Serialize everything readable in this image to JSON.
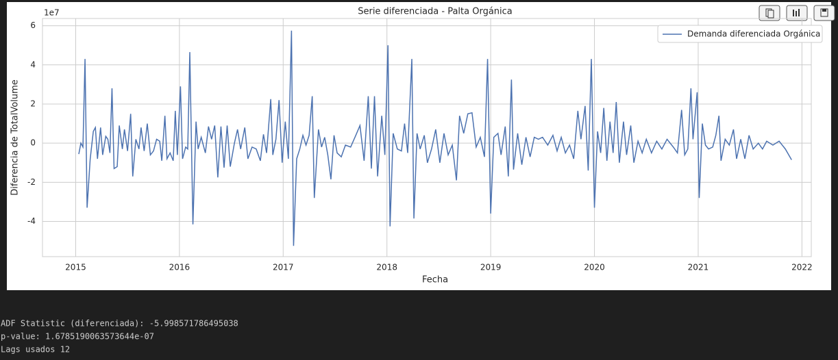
{
  "chart_data": {
    "type": "line",
    "title": "Serie diferenciada - Palta Orgánica",
    "x_label": "Fecha",
    "y_label": "Diferencia de TotalVolume",
    "y_offset_label": "1e7",
    "xlim": [
      2014.68,
      2022.09
    ],
    "xticks": [
      2015,
      2016,
      2017,
      2018,
      2019,
      2020,
      2021,
      2022
    ],
    "ylim": [
      -5.8,
      6.37
    ],
    "yticks": [
      -4,
      -2,
      0,
      2,
      4,
      6
    ],
    "grid": true,
    "legend": "upper right",
    "x": [
      2015.03,
      2015.05,
      2015.07,
      2015.09,
      2015.11,
      2015.14,
      2015.17,
      2015.19,
      2015.21,
      2015.24,
      2015.26,
      2015.29,
      2015.31,
      2015.33,
      2015.35,
      2015.37,
      2015.4,
      2015.42,
      2015.45,
      2015.47,
      2015.5,
      2015.53,
      2015.55,
      2015.58,
      2015.61,
      2015.63,
      2015.66,
      2015.69,
      2015.72,
      2015.75,
      2015.78,
      2015.81,
      2015.83,
      2015.86,
      2015.88,
      2015.91,
      2015.94,
      2015.96,
      2015.98,
      2016.01,
      2016.03,
      2016.06,
      2016.08,
      2016.1,
      2016.13,
      2016.16,
      2016.18,
      2016.21,
      2016.25,
      2016.28,
      2016.31,
      2016.34,
      2016.37,
      2016.4,
      2016.43,
      2016.46,
      2016.49,
      2016.53,
      2016.56,
      2016.59,
      2016.63,
      2016.66,
      2016.7,
      2016.74,
      2016.78,
      2016.81,
      2016.84,
      2016.88,
      2016.9,
      2016.93,
      2016.96,
      2016.99,
      2017.02,
      2017.05,
      2017.08,
      2017.1,
      2017.13,
      2017.16,
      2017.19,
      2017.22,
      2017.25,
      2017.28,
      2017.3,
      2017.34,
      2017.37,
      2017.4,
      2017.43,
      2017.46,
      2017.49,
      2017.52,
      2017.56,
      2017.6,
      2017.65,
      2017.7,
      2017.74,
      2017.78,
      2017.82,
      2017.85,
      2017.88,
      2017.91,
      2017.95,
      2017.98,
      2018.01,
      2018.03,
      2018.06,
      2018.1,
      2018.14,
      2018.17,
      2018.2,
      2018.24,
      2018.26,
      2018.29,
      2018.32,
      2018.36,
      2018.39,
      2018.43,
      2018.47,
      2018.51,
      2018.55,
      2018.59,
      2018.63,
      2018.67,
      2018.7,
      2018.74,
      2018.78,
      2018.82,
      2018.86,
      2018.9,
      2018.94,
      2018.97,
      2019.0,
      2019.03,
      2019.07,
      2019.1,
      2019.14,
      2019.17,
      2019.2,
      2019.22,
      2019.26,
      2019.3,
      2019.34,
      2019.38,
      2019.42,
      2019.46,
      2019.5,
      2019.55,
      2019.6,
      2019.64,
      2019.68,
      2019.72,
      2019.76,
      2019.8,
      2019.84,
      2019.87,
      2019.91,
      2019.94,
      2019.97,
      2020.0,
      2020.03,
      2020.06,
      2020.09,
      2020.12,
      2020.15,
      2020.18,
      2020.21,
      2020.24,
      2020.28,
      2020.31,
      2020.35,
      2020.38,
      2020.42,
      2020.46,
      2020.5,
      2020.55,
      2020.6,
      2020.65,
      2020.7,
      2020.76,
      2020.8,
      2020.84,
      2020.87,
      2020.9,
      2020.93,
      2020.95,
      2020.99,
      2021.01,
      2021.04,
      2021.07,
      2021.1,
      2021.14,
      2021.17,
      2021.2,
      2021.22,
      2021.26,
      2021.3,
      2021.34,
      2021.37,
      2021.41,
      2021.45,
      2021.49,
      2021.53,
      2021.58,
      2021.62,
      2021.66,
      2021.72,
      2021.78,
      2021.84,
      2021.9
    ],
    "series": [
      {
        "name": "Demanda diferenciada Orgánica",
        "color": "#4c72b0",
        "values": [
          -0.56,
          0.0,
          -0.2,
          4.3,
          -3.3,
          -0.8,
          0.6,
          0.8,
          -0.8,
          0.8,
          -0.6,
          0.35,
          0.2,
          -0.5,
          2.8,
          -1.3,
          -1.2,
          0.9,
          -0.3,
          0.7,
          -0.4,
          1.5,
          -1.7,
          0.2,
          -0.3,
          0.8,
          -0.4,
          1.0,
          -0.6,
          -0.4,
          0.2,
          0.1,
          -0.9,
          1.4,
          -0.8,
          -0.5,
          -0.9,
          1.65,
          -0.6,
          2.9,
          -0.8,
          -0.2,
          -0.3,
          4.65,
          -4.15,
          1.1,
          -0.3,
          0.3,
          -0.5,
          0.85,
          0.2,
          0.9,
          -1.75,
          0.85,
          -1.25,
          0.9,
          -1.2,
          0.0,
          0.7,
          -0.3,
          0.8,
          -0.8,
          -0.2,
          -0.3,
          -0.9,
          0.45,
          -0.5,
          2.25,
          -0.6,
          0.2,
          2.2,
          -1.0,
          1.1,
          -0.8,
          5.75,
          -5.25,
          -0.8,
          -0.3,
          0.4,
          -0.1,
          0.4,
          2.4,
          -2.8,
          0.7,
          -0.2,
          0.3,
          -0.6,
          -1.85,
          0.4,
          -0.5,
          -0.7,
          -0.1,
          -0.2,
          0.4,
          0.9,
          -0.9,
          2.4,
          -1.3,
          2.4,
          -1.7,
          1.4,
          -0.6,
          5.0,
          -4.25,
          0.5,
          -0.3,
          -0.4,
          1.0,
          -0.5,
          4.3,
          -3.85,
          0.5,
          -0.3,
          0.4,
          -1.0,
          -0.3,
          0.7,
          -1.0,
          0.5,
          -0.6,
          -0.1,
          -1.9,
          1.4,
          0.5,
          1.5,
          1.55,
          -0.2,
          0.3,
          -0.7,
          4.3,
          -3.6,
          0.3,
          0.5,
          -0.6,
          0.85,
          -1.7,
          3.25,
          -1.35,
          0.5,
          -1.1,
          0.3,
          -0.7,
          0.3,
          0.2,
          0.3,
          -0.1,
          0.4,
          -0.4,
          0.3,
          -0.5,
          -0.1,
          -0.8,
          1.65,
          0.2,
          1.9,
          -1.4,
          4.3,
          -3.3,
          0.6,
          -0.5,
          1.8,
          -0.9,
          1.1,
          -0.5,
          2.1,
          -1.0,
          1.1,
          -0.6,
          0.9,
          -1.0,
          0.1,
          -0.5,
          0.2,
          -0.5,
          0.1,
          -0.3,
          0.2,
          -0.2,
          -0.5,
          1.7,
          -0.6,
          -0.3,
          2.8,
          0.2,
          2.6,
          -2.8,
          1.0,
          -0.1,
          -0.3,
          -0.2,
          0.4,
          1.4,
          -0.9,
          0.2,
          -0.1,
          0.7,
          -0.8,
          0.2,
          -0.8,
          0.4,
          -0.3,
          0.0,
          -0.3,
          0.1,
          -0.1,
          0.1,
          -0.3,
          -0.85
        ]
      }
    ]
  },
  "output": {
    "lines": [
      "ADF Statistic (diferenciada): -5.998571786495038",
      "p-value: 1.6785190063573644e-07",
      "Lags usados 12"
    ]
  }
}
